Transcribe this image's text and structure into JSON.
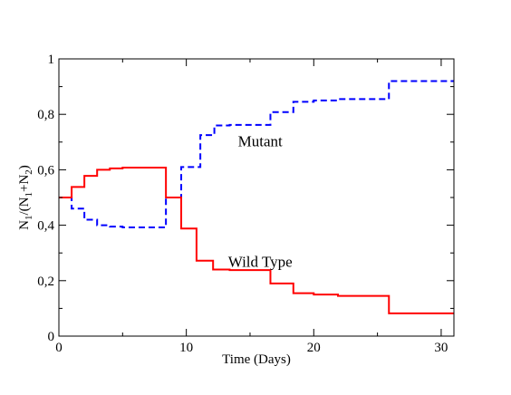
{
  "chart_data": {
    "type": "line",
    "xlabel": "Time (Days)",
    "ylabel": "N1/(N1+N2)",
    "ylabel_parts": {
      "a": "N",
      "a_sub": "1",
      "b": "/(N",
      "b_sub": "1",
      "c": "+N",
      "c_sub": "2",
      "d": ")"
    },
    "xlim": [
      0,
      31
    ],
    "ylim": [
      0,
      1
    ],
    "xticks": [
      0,
      10,
      20,
      30
    ],
    "xtick_labels": [
      "0",
      "10",
      "20",
      "30"
    ],
    "yticks": [
      0,
      0.2,
      0.4,
      0.6,
      0.8,
      1
    ],
    "ytick_labels": [
      "0",
      "0,2",
      "0,4",
      "0,6",
      "0,8",
      "1"
    ],
    "grid": false,
    "legend": "none",
    "series": [
      {
        "name": "Mutant",
        "color": "#0000ff",
        "style": "dashed",
        "points": [
          [
            0,
            0.5
          ],
          [
            1,
            0.5
          ],
          [
            1,
            0.46
          ],
          [
            2,
            0.46
          ],
          [
            2,
            0.42
          ],
          [
            3,
            0.42
          ],
          [
            3,
            0.4
          ],
          [
            4,
            0.4
          ],
          [
            4,
            0.395
          ],
          [
            5,
            0.395
          ],
          [
            5,
            0.392
          ],
          [
            8.4,
            0.392
          ],
          [
            8.4,
            0.5
          ],
          [
            9.6,
            0.5
          ],
          [
            9.6,
            0.61
          ],
          [
            11.1,
            0.61
          ],
          [
            11.1,
            0.725
          ],
          [
            12.2,
            0.725
          ],
          [
            12.2,
            0.76
          ],
          [
            13.4,
            0.76
          ],
          [
            13.4,
            0.762
          ],
          [
            16.6,
            0.762
          ],
          [
            16.6,
            0.808
          ],
          [
            18.4,
            0.808
          ],
          [
            18.4,
            0.845
          ],
          [
            20.0,
            0.845
          ],
          [
            20.0,
            0.85
          ],
          [
            21.9,
            0.85
          ],
          [
            21.9,
            0.855
          ],
          [
            25.9,
            0.855
          ],
          [
            25.9,
            0.92
          ],
          [
            31,
            0.92
          ]
        ],
        "label_position": [
          15.8,
          0.705
        ]
      },
      {
        "name": "Wild Type",
        "color": "#ff0000",
        "style": "solid",
        "points": [
          [
            0,
            0.5
          ],
          [
            1,
            0.5
          ],
          [
            1,
            0.538
          ],
          [
            2,
            0.538
          ],
          [
            2,
            0.578
          ],
          [
            3,
            0.578
          ],
          [
            3,
            0.6
          ],
          [
            4,
            0.6
          ],
          [
            4,
            0.605
          ],
          [
            5,
            0.605
          ],
          [
            5,
            0.608
          ],
          [
            8.4,
            0.608
          ],
          [
            8.4,
            0.5
          ],
          [
            9.6,
            0.5
          ],
          [
            9.6,
            0.388
          ],
          [
            10.8,
            0.388
          ],
          [
            10.8,
            0.272
          ],
          [
            12.1,
            0.272
          ],
          [
            12.1,
            0.24
          ],
          [
            13.4,
            0.24
          ],
          [
            13.4,
            0.238
          ],
          [
            16.6,
            0.238
          ],
          [
            16.6,
            0.19
          ],
          [
            18.4,
            0.19
          ],
          [
            18.4,
            0.155
          ],
          [
            20.0,
            0.155
          ],
          [
            20.0,
            0.15
          ],
          [
            21.9,
            0.15
          ],
          [
            21.9,
            0.145
          ],
          [
            25.9,
            0.145
          ],
          [
            25.9,
            0.082
          ],
          [
            31,
            0.082
          ]
        ],
        "label_position": [
          15.8,
          0.27
        ]
      }
    ]
  }
}
